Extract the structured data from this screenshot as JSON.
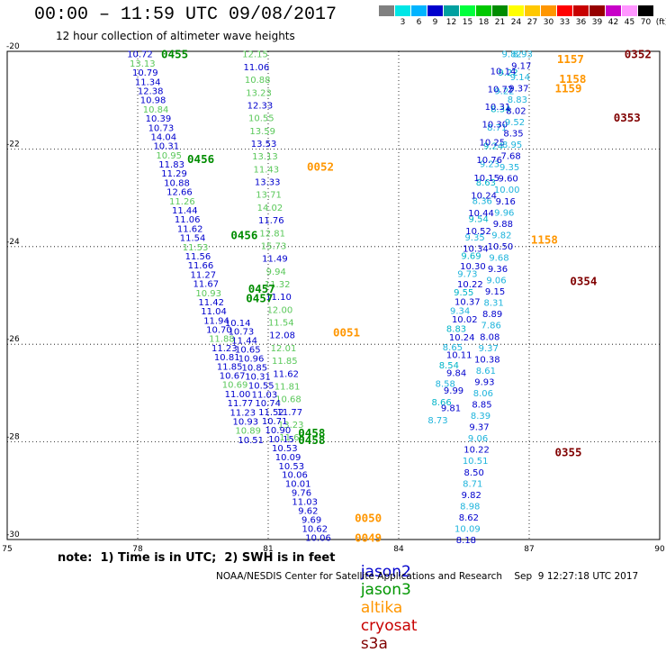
{
  "header": {
    "title": "00:00 – 11:59 UTC 09/08/2017",
    "subtitle": "12 hour collection of altimeter wave heights"
  },
  "scale": {
    "unit": "(ft)",
    "levels": [
      {
        "label": "",
        "color": "#808080"
      },
      {
        "label": "3",
        "color": "#00e6e6"
      },
      {
        "label": "6",
        "color": "#00b4ff"
      },
      {
        "label": "9",
        "color": "#0000cd"
      },
      {
        "label": "12",
        "color": "#00a0a0"
      },
      {
        "label": "15",
        "color": "#00ff3c"
      },
      {
        "label": "18",
        "color": "#00c800"
      },
      {
        "label": "21",
        "color": "#008c00"
      },
      {
        "label": "24",
        "color": "#ffff00"
      },
      {
        "label": "27",
        "color": "#ffc800"
      },
      {
        "label": "30",
        "color": "#ff9600"
      },
      {
        "label": "33",
        "color": "#ff0000"
      },
      {
        "label": "36",
        "color": "#c80000"
      },
      {
        "label": "39",
        "color": "#960000"
      },
      {
        "label": "42",
        "color": "#c800c8"
      },
      {
        "label": "45",
        "color": "#ff96ff"
      },
      {
        "label": "70",
        "color": "#000000"
      }
    ]
  },
  "note": "note:  1) Time is in UTC;  2) SWH is in feet",
  "legend": [
    {
      "label": "jason2",
      "color": "#0000cd"
    },
    {
      "label": "jason3",
      "color": "#009600"
    },
    {
      "label": "altika",
      "color": "#ff9600"
    },
    {
      "label": "cryosat",
      "color": "#c80000"
    },
    {
      "label": "s3a",
      "color": "#800000"
    }
  ],
  "footer": "NOAA/NESDIS Center for Satellite Applications and Research    Sep  9 12:27:18 UTC 2017",
  "chart_data": {
    "type": "scatter",
    "x_ticks": [
      "75",
      "78",
      "81",
      "84",
      "87",
      "90"
    ],
    "y_ticks": [
      "-20",
      "-22",
      "-24",
      "-26",
      "-28",
      "-30"
    ],
    "xlim": [
      75,
      90
    ],
    "ylim": [
      -30,
      -20
    ],
    "grid": true,
    "colors": {
      "jason2": "#0000cd",
      "jason3_light": "#5ac85a",
      "jason3": "#008c00",
      "altika": "#ff9600",
      "cryosat": "#800000",
      "cyan": "#1eb4dc",
      "teal": "#00b4c8"
    },
    "tracks": [
      {
        "name": "jason2",
        "color_key": "jason2",
        "start": [
          78.05,
          -20.05
        ],
        "end": [
          80.6,
          -27.95
        ],
        "values": [
          "10.72",
          "13.13",
          "10.79",
          "11.34",
          "12.38",
          "10.98",
          "10.84",
          "10.39",
          "10.73",
          "14.04",
          "10.31",
          "10.95",
          "11.83",
          "11.29",
          "10.88",
          "12.66",
          "11.26",
          "11.44",
          "11.06",
          "11.62",
          "11.54",
          "11.53",
          "11.56",
          "11.66",
          "11.27",
          "11.67",
          "10.93",
          "11.42",
          "11.04",
          "11.94",
          "10.70",
          "11.88",
          "11.23",
          "10.81",
          "11.85",
          "10.67",
          "10.69",
          "11.00",
          "11.77",
          "11.23",
          "10.93",
          "10.89",
          "10.51"
        ]
      },
      {
        "name": "jason2-b",
        "color_key": "jason2",
        "start": [
          80.7,
          -20.05
        ],
        "end": [
          81.55,
          -27.9
        ],
        "values": [
          "12.15",
          "11.06",
          "10.88",
          "13.23",
          "12.33",
          "10.55",
          "13.59",
          "13.53",
          "13.13",
          "11.43",
          "13.33",
          "13.71",
          "14.02",
          "11.76",
          "12.81",
          "15.73",
          "11.49",
          "9.94",
          "11.32",
          "11.10",
          "12.00",
          "11.54",
          "12.08",
          "12.01",
          "11.85",
          "11.62",
          "11.81",
          "10.68",
          "11.77",
          "13.23",
          "11.66"
        ]
      },
      {
        "name": "jason2-c",
        "color_key": "jason2",
        "start": [
          80.3,
          -25.55
        ],
        "end": [
          82.15,
          -29.95
        ],
        "values": [
          "10.14",
          "10.73",
          "11.44",
          "10.65",
          "10.96",
          "10.85",
          "10.31",
          "10.55",
          "11.03",
          "10.74",
          "11.52",
          "10.71",
          "10.90",
          "10.15",
          "10.53",
          "10.09",
          "10.53",
          "10.06",
          "10.01",
          "9.76",
          "11.03",
          "9.62",
          "9.69",
          "10.62",
          "10.06"
        ]
      },
      {
        "name": "altika-w",
        "color_key": "cyan",
        "start": [
          86.6,
          -20.05
        ],
        "end": [
          84.9,
          -27.55
        ],
        "values": [
          "9.82",
          "9.22",
          "9.22",
          "8.34",
          "8.71",
          "9.24",
          "9.23",
          "8.63",
          "8.36",
          "9.54",
          "9.35",
          "9.69",
          "9.73",
          "9.55",
          "9.34",
          "8.83",
          "8.65",
          "8.54",
          "8.58",
          "8.66",
          "8.73"
        ]
      },
      {
        "name": "jason2-e",
        "color_key": "jason2",
        "start": [
          86.4,
          -20.4
        ],
        "end": [
          85.2,
          -27.3
        ],
        "values": [
          "10.14",
          "10.72",
          "10.31",
          "10.30",
          "10.25",
          "10.76",
          "10.15",
          "10.24",
          "10.44",
          "10.52",
          "10.34",
          "10.30",
          "10.22",
          "10.37",
          "10.02",
          "10.24",
          "10.11",
          "9.84",
          "9.99",
          "9.81"
        ]
      },
      {
        "name": "cyan-e",
        "color_key": "cyan",
        "start": [
          86.85,
          -20.05
        ],
        "end": [
          85.55,
          -30.0
        ],
        "values": [
          "8.93",
          "9.17",
          "9.14",
          "9.37",
          "8.83",
          "8.02",
          "9.52",
          "8.35",
          "8.95",
          "7.68",
          "9.35",
          "9.60",
          "10.00",
          "9.16",
          "9.96",
          "9.88",
          "9.82",
          "10.50",
          "9.68",
          "9.36",
          "9.06",
          "9.15",
          "8.31",
          "8.89",
          "7.86",
          "8.08",
          "9.37",
          "10.38",
          "8.61",
          "9.93",
          "8.06",
          "8.85",
          "8.39",
          "9.37",
          "9.06",
          "10.22",
          "10.51",
          "8.50",
          "8.71",
          "9.82",
          "8.98",
          "8.62",
          "10.09",
          "8.18"
        ]
      }
    ],
    "annotations": [
      {
        "text": "0455",
        "x": 78.85,
        "y": -20.05,
        "color_key": "jason3"
      },
      {
        "text": "0456",
        "x": 79.45,
        "y": -22.2,
        "color_key": "jason3"
      },
      {
        "text": "0456",
        "x": 80.45,
        "y": -23.75,
        "color_key": "jason3"
      },
      {
        "text": "0457",
        "x": 80.85,
        "y": -24.85,
        "color_key": "jason3"
      },
      {
        "text": "0457",
        "x": 80.8,
        "y": -25.05,
        "color_key": "jason3"
      },
      {
        "text": "0052",
        "x": 82.2,
        "y": -22.35,
        "color_key": "altika"
      },
      {
        "text": "0051",
        "x": 82.8,
        "y": -25.75,
        "color_key": "altika"
      },
      {
        "text": "0458",
        "x": 82.0,
        "y": -27.8,
        "color_key": "jason3"
      },
      {
        "text": "0458",
        "x": 82.0,
        "y": -27.95,
        "color_key": "jason3"
      },
      {
        "text": "0050",
        "x": 83.3,
        "y": -29.55,
        "color_key": "altika"
      },
      {
        "text": "0049",
        "x": 83.3,
        "y": -29.95,
        "color_key": "altika"
      },
      {
        "text": "1157",
        "x": 87.95,
        "y": -20.15,
        "color_key": "altika"
      },
      {
        "text": "1158",
        "x": 88.0,
        "y": -20.55,
        "color_key": "altika"
      },
      {
        "text": "1159",
        "x": 87.9,
        "y": -20.75,
        "color_key": "altika"
      },
      {
        "text": "1158",
        "x": 87.35,
        "y": -23.85,
        "color_key": "altika"
      },
      {
        "text": "0352",
        "x": 89.5,
        "y": -20.05,
        "color_key": "cryosat"
      },
      {
        "text": "0353",
        "x": 89.25,
        "y": -21.35,
        "color_key": "cryosat"
      },
      {
        "text": "0354",
        "x": 88.25,
        "y": -24.7,
        "color_key": "cryosat"
      },
      {
        "text": "0355",
        "x": 87.9,
        "y": -28.2,
        "color_key": "cryosat"
      }
    ]
  }
}
